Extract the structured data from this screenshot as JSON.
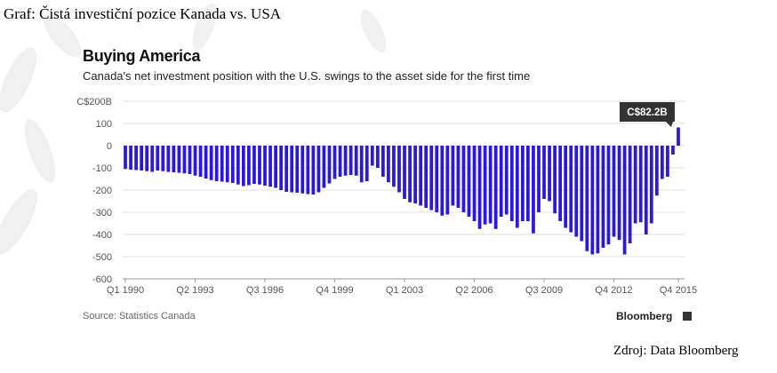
{
  "page_caption": "Graf: Čistá investiční pozice Kanada vs. USA",
  "footer_credit": "Zdroj: Data Bloomberg",
  "source": "Source: Statistics Canada",
  "brand": "Bloomberg",
  "colors": {
    "bar": "#2a17e0",
    "grid": "#e2e2e2",
    "callout_bg": "#333333"
  },
  "chart_data": {
    "type": "bar",
    "title": "Buying America",
    "subtitle": "Canada's net investment position with the U.S. swings to the asset side for the first time",
    "xlabel": "",
    "ylabel": "",
    "ylim": [
      -600,
      200
    ],
    "y_ticks": [
      {
        "value": 200,
        "label": "C$200B"
      },
      {
        "value": 100,
        "label": "100"
      },
      {
        "value": 0,
        "label": "0"
      },
      {
        "value": -100,
        "label": "-100"
      },
      {
        "value": -200,
        "label": "-200"
      },
      {
        "value": -300,
        "label": "-300"
      },
      {
        "value": -400,
        "label": "-400"
      },
      {
        "value": -500,
        "label": "-500"
      },
      {
        "value": -600,
        "label": "-600"
      }
    ],
    "x_ticks": [
      {
        "index": 0,
        "label": "Q1 1990"
      },
      {
        "index": 13,
        "label": "Q2 1993"
      },
      {
        "index": 26,
        "label": "Q3 1996"
      },
      {
        "index": 39,
        "label": "Q4 1999"
      },
      {
        "index": 52,
        "label": "Q1 2003"
      },
      {
        "index": 65,
        "label": "Q2 2006"
      },
      {
        "index": 78,
        "label": "Q3 2009"
      },
      {
        "index": 91,
        "label": "Q4 2012"
      },
      {
        "index": 103,
        "label": "Q4 2015"
      }
    ],
    "annotation": {
      "index": 103,
      "label": "C$82.2B"
    },
    "grid": true,
    "series": [
      {
        "values": [
          -105,
          -108,
          -110,
          -112,
          -115,
          -118,
          -112,
          -115,
          -118,
          -120,
          -122,
          -125,
          -128,
          -135,
          -140,
          -148,
          -155,
          -160,
          -162,
          -165,
          -168,
          -175,
          -182,
          -178,
          -172,
          -175,
          -180,
          -185,
          -190,
          -200,
          -208,
          -210,
          -212,
          -215,
          -218,
          -220,
          -210,
          -190,
          -170,
          -150,
          -140,
          -135,
          -132,
          -135,
          -165,
          -160,
          -90,
          -100,
          -140,
          -165,
          -185,
          -210,
          -240,
          -255,
          -260,
          -270,
          -280,
          -290,
          -300,
          -315,
          -310,
          -270,
          -280,
          -300,
          -320,
          -340,
          -375,
          -355,
          -350,
          -375,
          -320,
          -310,
          -340,
          -370,
          -340,
          -340,
          -395,
          -300,
          -240,
          -250,
          -305,
          -340,
          -370,
          -390,
          -410,
          -430,
          -475,
          -490,
          -485,
          -460,
          -445,
          -410,
          -425,
          -490,
          -440,
          -350,
          -345,
          -400,
          -350,
          -225,
          -150,
          -140,
          -40,
          82.2
        ]
      }
    ]
  }
}
